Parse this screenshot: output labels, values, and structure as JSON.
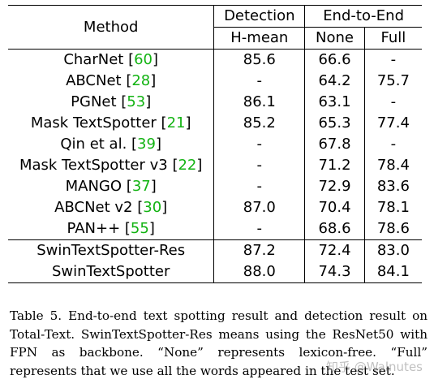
{
  "table": {
    "headers": {
      "method": "Method",
      "detection": "Detection",
      "end_to_end": "End-to-End",
      "h_mean": "H-mean",
      "none": "None",
      "full": "Full"
    },
    "rows": [
      {
        "name": "CharNet",
        "cite": "60",
        "hmean": "85.6",
        "none": "66.6",
        "full": "-"
      },
      {
        "name": "ABCNet",
        "cite": "28",
        "hmean": "-",
        "none": "64.2",
        "full": "75.7"
      },
      {
        "name": "PGNet",
        "cite": "53",
        "hmean": "86.1",
        "none": "63.1",
        "full": "-"
      },
      {
        "name": "Mask TextSpotter",
        "cite": "21",
        "hmean": "85.2",
        "none": "65.3",
        "full": "77.4"
      },
      {
        "name": "Qin et al.",
        "cite": "39",
        "hmean": "-",
        "none": "67.8",
        "full": "-"
      },
      {
        "name": "Mask TextSpotter v3",
        "cite": "22",
        "hmean": "-",
        "none": "71.2",
        "full": "78.4"
      },
      {
        "name": "MANGO",
        "cite": "37",
        "hmean": "-",
        "none": "72.9",
        "full": "83.6"
      },
      {
        "name": "ABCNet v2",
        "cite": "30",
        "hmean": "87.0",
        "none": "70.4",
        "full": "78.1"
      },
      {
        "name": "PAN++",
        "cite": "55",
        "hmean": "-",
        "none": "68.6",
        "full": "78.6"
      }
    ],
    "ours": [
      {
        "name": "SwinTextSpotter-Res",
        "hmean": "87.2",
        "none": "72.4",
        "full": "83.0"
      },
      {
        "name": "SwinTextSpotter",
        "hmean": "88.0",
        "none": "74.3",
        "full": "84.1"
      }
    ]
  },
  "caption": "Table 5.  End-to-end text spotting result and detection result on Total-Text. SwinTextSpotter-Res means using the ResNet50 with FPN as backbone. “None” represents lexicon-free. “Full” represents that we use all the words appeared in the test set.",
  "watermark": "知乎 @Walnutes",
  "colors": {
    "citation": "#12b312"
  }
}
